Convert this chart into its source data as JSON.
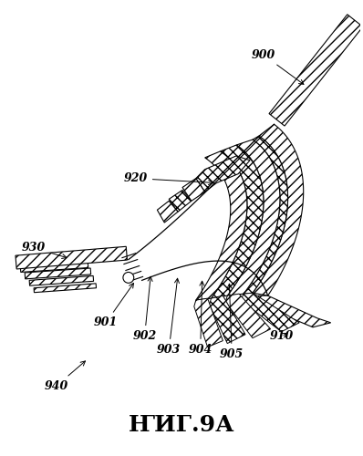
{
  "title": "ҤИГ.9А",
  "title_fontsize": 18,
  "background_color": "#ffffff",
  "fig_width": 3.98,
  "fig_height": 5.0,
  "dpi": 100
}
